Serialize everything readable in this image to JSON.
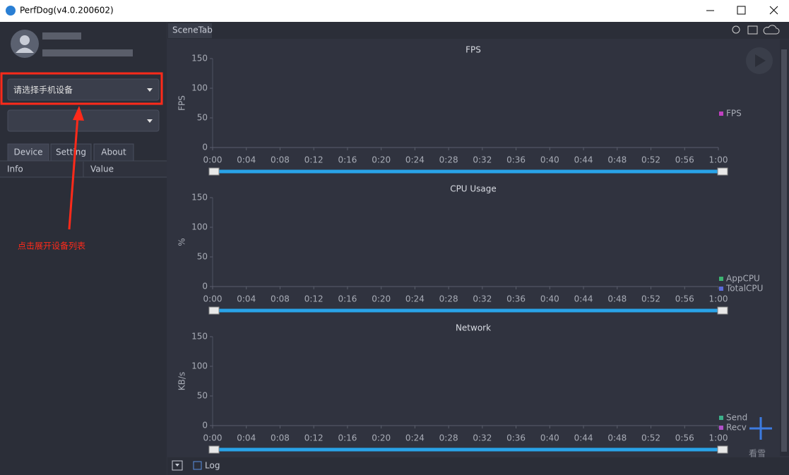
{
  "window": {
    "title": "PerfDog(v4.0.200602)"
  },
  "sidebar": {
    "device_select": "请选择手机设备",
    "tabs": [
      "Device",
      "Setting",
      "About"
    ],
    "columns": [
      "Info",
      "Value"
    ]
  },
  "tab_bar": {
    "tab": "SceneTab"
  },
  "charts": [
    {
      "title": "FPS",
      "ylabel": "FPS",
      "ylim": [
        0,
        150
      ],
      "yticks": [
        0,
        50,
        100,
        150
      ],
      "xticks": [
        "0:00",
        "0:04",
        "0:08",
        "0:12",
        "0:16",
        "0:20",
        "0:24",
        "0:28",
        "0:32",
        "0:36",
        "0:40",
        "0:44",
        "0:48",
        "0:52",
        "0:56",
        "1:00"
      ],
      "legend": [
        {
          "name": "FPS",
          "color": "#c040c0"
        }
      ]
    },
    {
      "title": "CPU Usage",
      "ylabel": "%",
      "ylim": [
        0,
        150
      ],
      "yticks": [
        0,
        50,
        100,
        150
      ],
      "xticks": [
        "0:00",
        "0:04",
        "0:08",
        "0:12",
        "0:16",
        "0:20",
        "0:24",
        "0:28",
        "0:32",
        "0:36",
        "0:40",
        "0:44",
        "0:48",
        "0:52",
        "0:56",
        "1:00"
      ],
      "legend": [
        {
          "name": "AppCPU",
          "color": "#3cb371"
        },
        {
          "name": "TotalCPU",
          "color": "#5a6ad8"
        }
      ]
    },
    {
      "title": "Network",
      "ylabel": "KB/s",
      "ylim": [
        0,
        150
      ],
      "yticks": [
        0,
        50,
        100,
        150
      ],
      "xticks": [
        "0:00",
        "0:04",
        "0:08",
        "0:12",
        "0:16",
        "0:20",
        "0:24",
        "0:28",
        "0:32",
        "0:36",
        "0:40",
        "0:44",
        "0:48",
        "0:52",
        "0:56",
        "1:00"
      ],
      "legend": [
        {
          "name": "Send",
          "color": "#3cb08a"
        },
        {
          "name": "Recv",
          "color": "#b050c8"
        }
      ]
    }
  ],
  "footer": {
    "log": "Log"
  },
  "annotation": {
    "text": "点击展开设备列表"
  },
  "watermark": "看雪"
}
